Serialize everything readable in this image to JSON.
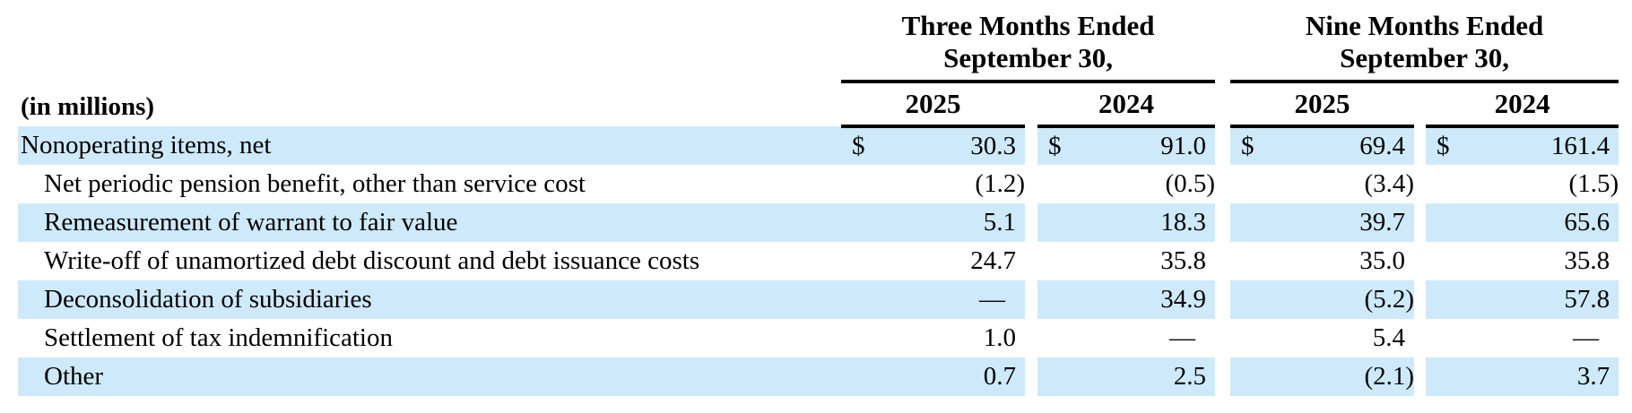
{
  "table": {
    "unit_label": "(in millions)",
    "highlight_color": "#cee9fa",
    "text_color": "#000000",
    "column_groups": [
      {
        "title_line1": "Three Months Ended",
        "title_line2": "September 30,",
        "years": [
          "2025",
          "2024"
        ]
      },
      {
        "title_line1": "Nine Months Ended",
        "title_line2": "September 30,",
        "years": [
          "2025",
          "2024"
        ]
      }
    ],
    "currency_symbol": "$",
    "rows": [
      {
        "label": "Nonoperating items, net",
        "indent": false,
        "highlighted": true,
        "dollar": [
          "$",
          "$",
          "$",
          "$"
        ],
        "values": [
          "30.3",
          "91.0",
          "69.4",
          "161.4"
        ]
      },
      {
        "label": "Net periodic pension benefit, other than service cost",
        "indent": true,
        "highlighted": false,
        "values": [
          "(1.2)",
          "(0.5)",
          "(3.4)",
          "(1.5)"
        ]
      },
      {
        "label": "Remeasurement of warrant to fair value",
        "indent": true,
        "highlighted": true,
        "values": [
          "5.1",
          "18.3",
          "39.7",
          "65.6"
        ]
      },
      {
        "label": "Write-off of unamortized debt discount and debt issuance costs",
        "indent": true,
        "highlighted": false,
        "values": [
          "24.7",
          "35.8",
          "35.0",
          "35.8"
        ]
      },
      {
        "label": "Deconsolidation of subsidiaries",
        "indent": true,
        "highlighted": true,
        "values": [
          "—",
          "34.9",
          "(5.2)",
          "57.8"
        ]
      },
      {
        "label": "Settlement of tax indemnification",
        "indent": true,
        "highlighted": false,
        "values": [
          "1.0",
          "—",
          "5.4",
          "—"
        ]
      },
      {
        "label": "Other",
        "indent": true,
        "highlighted": true,
        "values": [
          "0.7",
          "2.5",
          "(2.1)",
          "3.7"
        ]
      }
    ]
  }
}
